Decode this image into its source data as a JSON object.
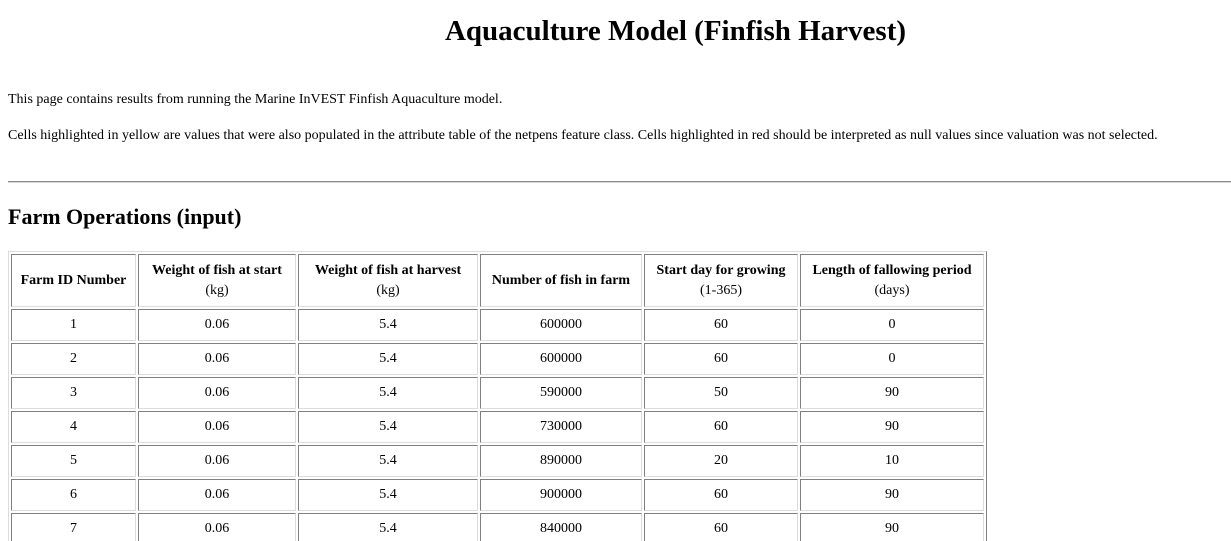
{
  "page": {
    "title": "Aquaculture Model (Finfish Harvest)",
    "intro": "This page contains results from running the Marine InVEST Finfish Aquaculture model.",
    "note": "Cells highlighted in yellow are values that were also populated in the attribute table of the netpens feature class. Cells highlighted in red should be interpreted as null values since valuation was not selected."
  },
  "section": {
    "heading": "Farm Operations (input)"
  },
  "table": {
    "headers": [
      {
        "name": "Farm ID Number",
        "unit": ""
      },
      {
        "name": "Weight of fish at start",
        "unit": "(kg)"
      },
      {
        "name": "Weight of fish at harvest",
        "unit": "(kg)"
      },
      {
        "name": "Number of fish in farm",
        "unit": ""
      },
      {
        "name": "Start day for growing",
        "unit": "(1-365)"
      },
      {
        "name": "Length of fallowing period",
        "unit": "(days)"
      }
    ],
    "rows": [
      [
        "1",
        "0.06",
        "5.4",
        "600000",
        "60",
        "0"
      ],
      [
        "2",
        "0.06",
        "5.4",
        "600000",
        "60",
        "0"
      ],
      [
        "3",
        "0.06",
        "5.4",
        "590000",
        "50",
        "90"
      ],
      [
        "4",
        "0.06",
        "5.4",
        "730000",
        "60",
        "90"
      ],
      [
        "5",
        "0.06",
        "5.4",
        "890000",
        "20",
        "10"
      ],
      [
        "6",
        "0.06",
        "5.4",
        "900000",
        "60",
        "90"
      ],
      [
        "7",
        "0.06",
        "5.4",
        "840000",
        "60",
        "90"
      ]
    ]
  }
}
